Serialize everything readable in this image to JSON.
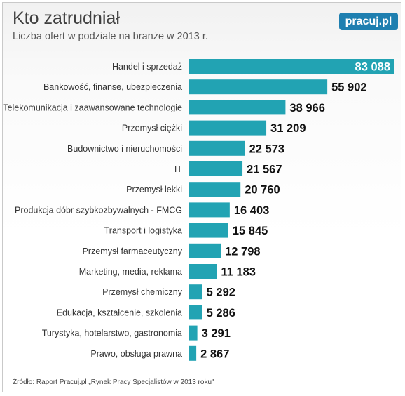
{
  "header": {
    "title": "Kto zatrudniał",
    "subtitle": "Liczba ofert w podziale na branże w 2013 r.",
    "logo": "pracuj.pl"
  },
  "footer": {
    "source": "Źródło: Raport Pracuj.pl „Rynek Pracy Specjalistów w 2013 roku\""
  },
  "colors": {
    "bar": "#22a3b3",
    "value_text_inside": "#ffffff",
    "value_text_outside": "#111111"
  },
  "chart_data": {
    "type": "bar",
    "orientation": "horizontal",
    "title": "Kto zatrudniał",
    "subtitle": "Liczba ofert w podziale na branże w 2013 r.",
    "categories": [
      "Handel i sprzedaż",
      "Bankowość, finanse, ubezpieczenia",
      "Telekomunikacja i zaawansowane technologie",
      "Przemysł ciężki",
      "Budownictwo i nieruchomości",
      "IT",
      "Przemysł lekki",
      "Produkcja dóbr szybkozbywalnych - FMCG",
      "Transport i logistyka",
      "Przemysł farmaceutyczny",
      "Marketing, media, reklama",
      "Przemysł chemiczny",
      "Edukacja, kształcenie, szkolenia",
      "Turystyka, hotelarstwo, gastronomia",
      "Prawo, obsługa prawna"
    ],
    "values": [
      83088,
      55902,
      38966,
      31209,
      22573,
      21567,
      20760,
      16403,
      15845,
      12798,
      11183,
      5292,
      5286,
      3291,
      2867
    ],
    "value_labels": [
      "83 088",
      "55 902",
      "38 966",
      "31 209",
      "22 573",
      "21 567",
      "20 760",
      "16 403",
      "15 845",
      "12 798",
      "11 183",
      "5 292",
      "5 286",
      "3 291",
      "2 867"
    ],
    "xlim": [
      0,
      83088
    ],
    "grid": false,
    "legend": "none"
  }
}
